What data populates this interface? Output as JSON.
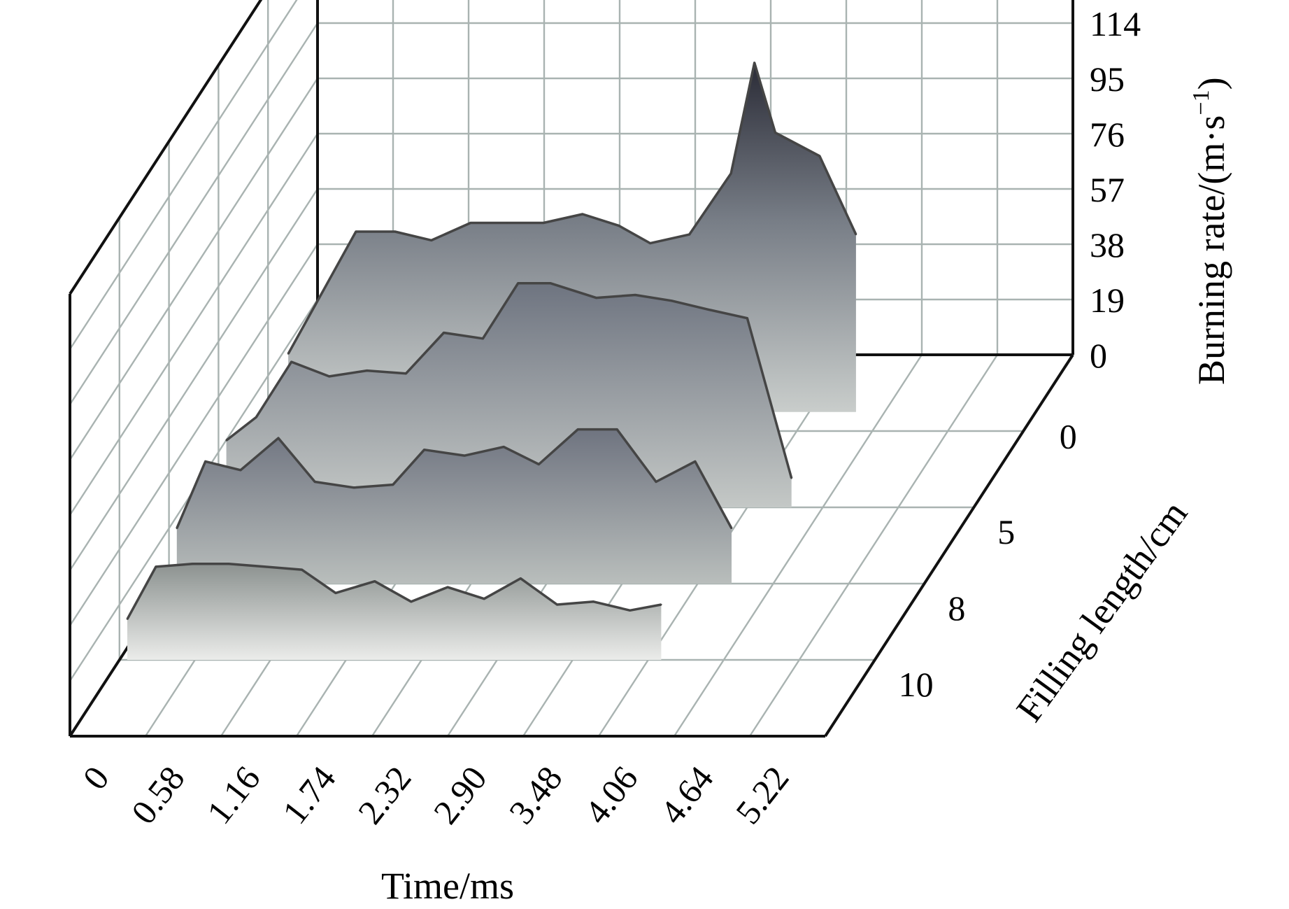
{
  "chart_data": {
    "type": "area",
    "subtype": "3d-waterfall",
    "title": "",
    "xlabel": "Time/ms",
    "ylabel": "Filling length/cm",
    "zlabel_main": "Burning rate/(m·s",
    "zlabel_sup": "−1",
    "zlabel_close": ")",
    "x_ticks": [
      "0",
      "0.58",
      "1.16",
      "1.74",
      "2.32",
      "2.90",
      "3.48",
      "4.06",
      "4.64",
      "5.22"
    ],
    "y_ticks": [
      "0",
      "5",
      "8",
      "10"
    ],
    "z_ticks": [
      "0",
      "19",
      "38",
      "57",
      "76",
      "95",
      "114"
    ],
    "zlim": [
      0,
      114
    ],
    "grid": true,
    "series": [
      {
        "name": "0",
        "x": [
          0.06,
          0.58,
          0.88,
          1.16,
          1.46,
          1.74,
          2.02,
          2.32,
          2.6,
          2.84,
          3.14,
          3.46,
          3.64,
          3.8,
          4.14,
          4.42
        ],
        "values": [
          20,
          62,
          62,
          59,
          65,
          65,
          65,
          68,
          64,
          58,
          61,
          82,
          120,
          96,
          88,
          61
        ]
      },
      {
        "name": "5",
        "x": [
          0.06,
          0.29,
          0.56,
          0.85,
          1.14,
          1.44,
          1.73,
          2.03,
          2.3,
          2.55,
          2.9,
          3.2,
          3.48,
          3.76,
          4.06,
          4.4
        ],
        "values": [
          23,
          31,
          50,
          45,
          47,
          46,
          60,
          58,
          77,
          77,
          72,
          73,
          71,
          68,
          65,
          10
        ]
      },
      {
        "name": "8",
        "x": [
          0.06,
          0.28,
          0.55,
          0.84,
          1.12,
          1.42,
          1.72,
          1.96,
          2.27,
          2.57,
          2.84,
          3.14,
          3.44,
          3.74,
          4.04,
          4.32
        ],
        "values": [
          19,
          42,
          39,
          50,
          35,
          33,
          34,
          46,
          44,
          47,
          41,
          53,
          53,
          35,
          42,
          19
        ]
      },
      {
        "name": "10",
        "x": [
          0.06,
          0.28,
          0.56,
          0.84,
          1.12,
          1.4,
          1.66,
          1.96,
          2.24,
          2.52,
          2.8,
          3.08,
          3.36,
          3.64,
          3.92,
          4.16
        ],
        "values": [
          14,
          32,
          33,
          33,
          32,
          31,
          23,
          27,
          20,
          25,
          21,
          28,
          19,
          20,
          17,
          19
        ]
      }
    ]
  }
}
